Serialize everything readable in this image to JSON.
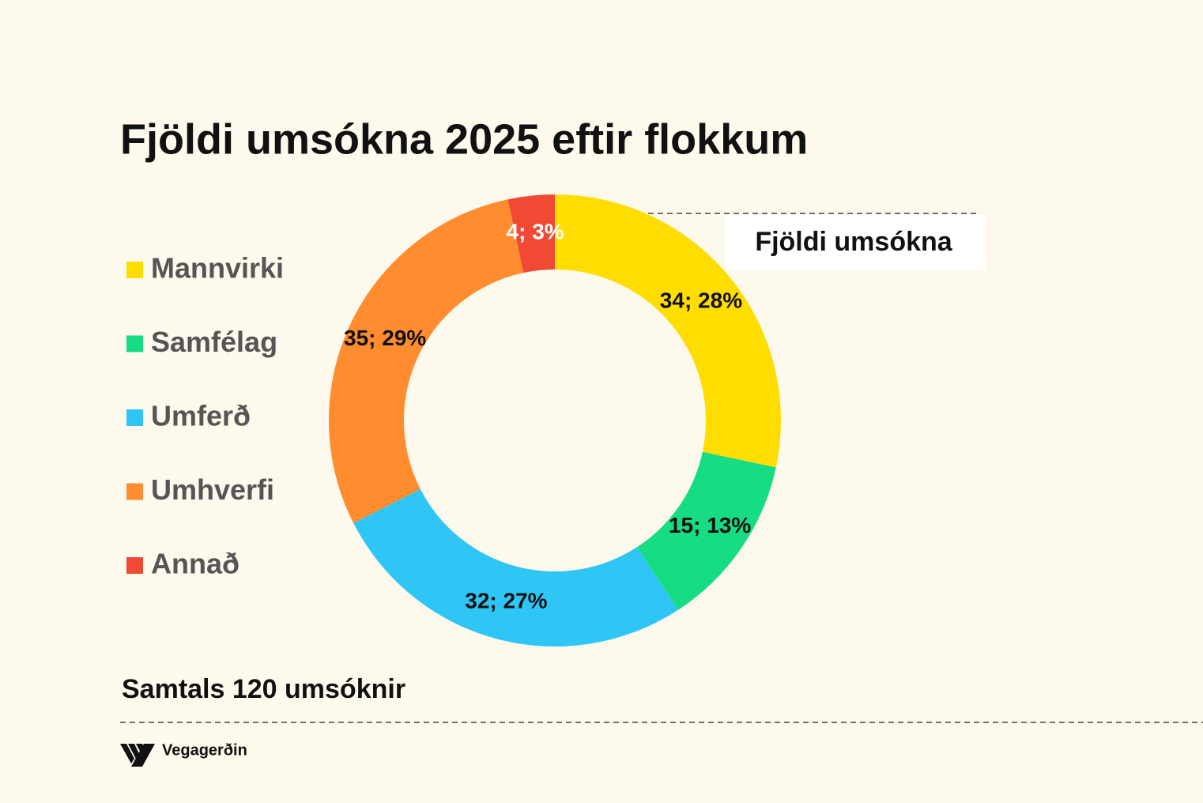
{
  "chart_data": {
    "type": "donut",
    "title": "Fjöldi umsókna 2025 eftir flokkum",
    "series_name": "Fjöldi umsókna",
    "categories": [
      "Mannvirki",
      "Samfélag",
      "Umferð",
      "Umhverfi",
      "Annað"
    ],
    "values": [
      34,
      15,
      32,
      35,
      4
    ],
    "value_labels": [
      "34; 28%",
      "15; 13%",
      "32; 27%",
      "35; 29%",
      "4; 3%"
    ],
    "colors": [
      "#ffdd00",
      "#16dc84",
      "#2fc6f6",
      "#ff8c2e",
      "#f04a35"
    ],
    "label_colors": [
      "#111111",
      "#111111",
      "#111111",
      "#111111",
      "#ffffff"
    ],
    "annotation": "Samtals 120 umsóknir"
  },
  "logo": {
    "text": "Vegagerðin"
  }
}
